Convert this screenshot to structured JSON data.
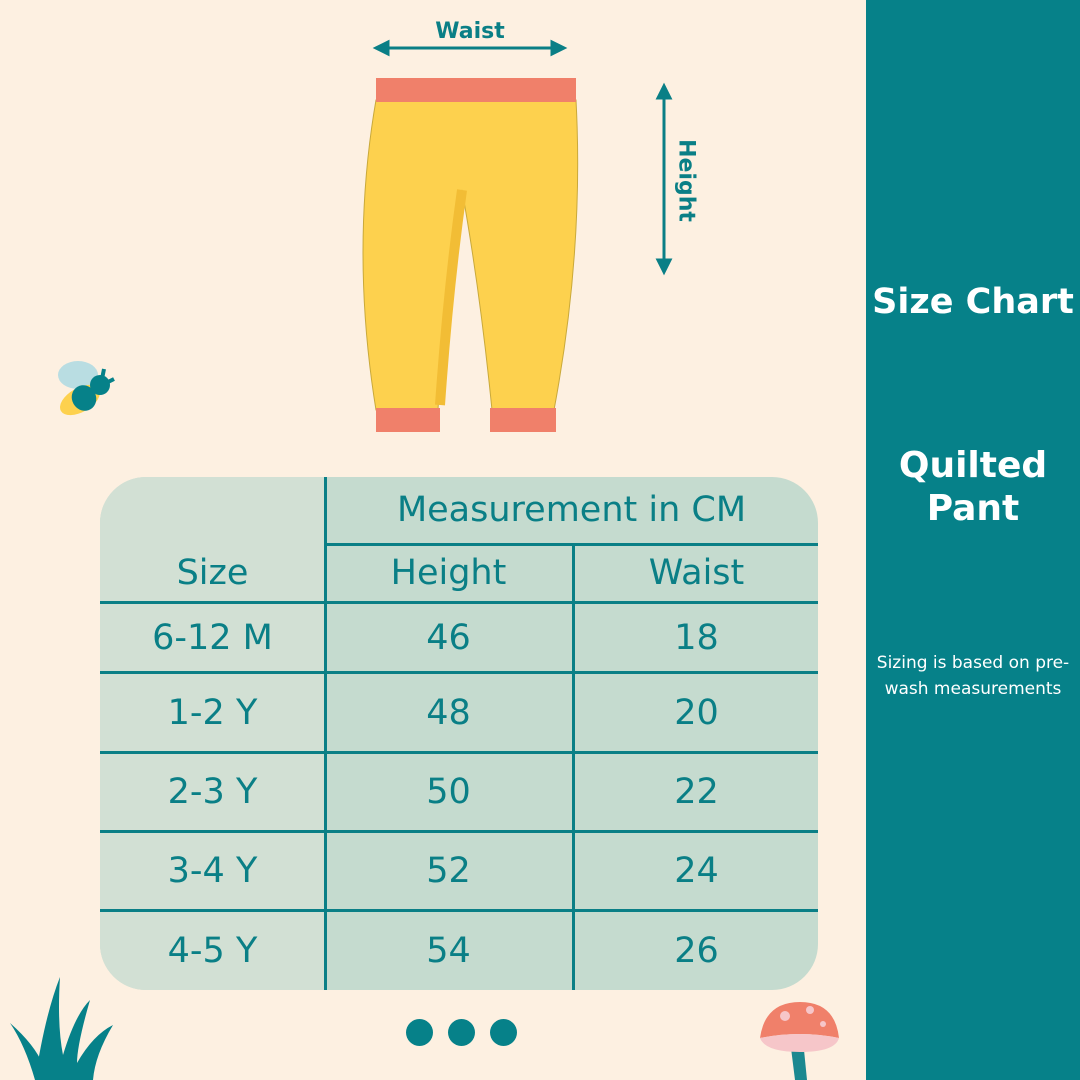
{
  "panel": {
    "title": "Size Chart",
    "product": "Quilted Pant",
    "note": "Sizing is based on pre-wash measurements"
  },
  "diagram": {
    "waist_label": "Waist",
    "height_label": "Height"
  },
  "table": {
    "group_header": "Measurement in CM",
    "headers": [
      "Size",
      "Height",
      "Waist"
    ],
    "rows": [
      [
        "6-12 M",
        "46",
        "18"
      ],
      [
        "1-2 Y",
        "48",
        "20"
      ],
      [
        "2-3 Y",
        "50",
        "22"
      ],
      [
        "3-4 Y",
        "52",
        "24"
      ],
      [
        "4-5 Y",
        "54",
        "26"
      ]
    ]
  },
  "colors": {
    "accent": "#068189",
    "background": "#fdf0e1",
    "pant": "#fdd14e",
    "cuff": "#f0806a",
    "table": "#c5dbcf"
  }
}
